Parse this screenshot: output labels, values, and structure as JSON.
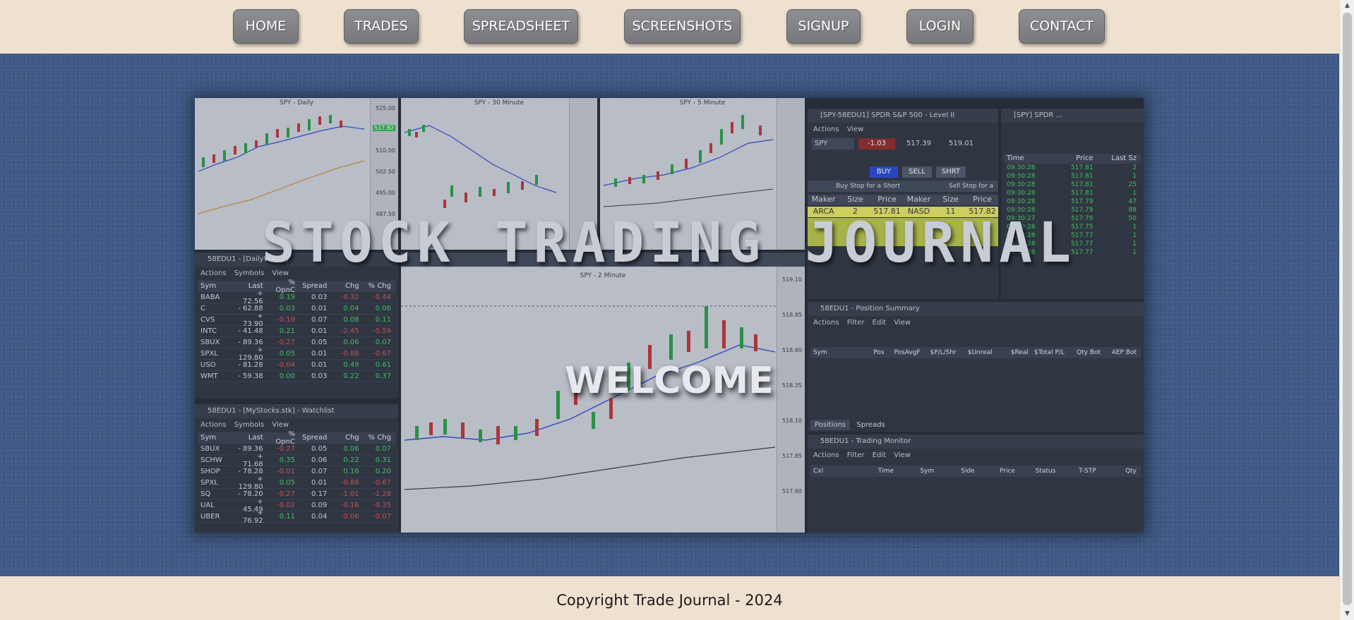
{
  "nav": {
    "home": "HOME",
    "trades": "TRADES",
    "spreadsheet": "SPREADSHEET",
    "screenshots": "SCREENSHOTS",
    "signup": "SIGNUP",
    "login": "LOGIN",
    "contact": "CONTACT"
  },
  "hero": {
    "title": "STOCK TRADING JOURNAL",
    "welcome": "WELCOME"
  },
  "screenshot": {
    "charts": {
      "daily": "SPY - Daily",
      "thirty": "SPY - 30 Minute",
      "five": "SPY - 5 Minute",
      "two": "SPY - 2 Minute",
      "daily_ticks": [
        "525.00",
        "517.82",
        "510.00",
        "502.50",
        "495.00",
        "487.50"
      ],
      "two_ticks": [
        "519.10",
        "518.85",
        "518.60",
        "518.35",
        "518.10",
        "517.85",
        "517.60"
      ]
    },
    "level2": {
      "title": "[SPY-58EDU1] SPDR S&P 500 - Level II",
      "menu": "Actions View",
      "symbol": "SPY",
      "change": "-1.03",
      "bid": "517.39",
      "ask": "519.01",
      "buy": "BUY",
      "sell": "SELL",
      "short": "SHRT",
      "buy_stop": "Buy Stop for a Short",
      "sell_stop": "Sell Stop for a L",
      "headers": [
        "Maker",
        "Size",
        "Price",
        "Maker",
        "Size",
        "Price"
      ],
      "row": [
        "ARCA",
        "2",
        "517.81",
        "NASD",
        "11",
        "517.82"
      ]
    },
    "timesales": {
      "title": "[SPY] SPDR ...",
      "headers": [
        "Time",
        "Price",
        "Last Sz"
      ],
      "rows": [
        [
          "09:30:28",
          "517.81",
          "2"
        ],
        [
          "09:30:28",
          "517.81",
          "1"
        ],
        [
          "09:30:28",
          "517.81",
          "25"
        ],
        [
          "09:30:28",
          "517.81",
          "1"
        ],
        [
          "09:30:28",
          "517.79",
          "47"
        ],
        [
          "09:30:28",
          "517.79",
          "88"
        ],
        [
          "09:30:27",
          "517.78",
          "50"
        ],
        [
          "09:30:28",
          "517.75",
          "1"
        ],
        [
          "09:30:28",
          "517.77",
          "1"
        ],
        [
          "09:30:28",
          "517.77",
          "1"
        ],
        [
          "09:30:28",
          "517.77",
          "1"
        ]
      ]
    },
    "position": {
      "title": "58EDU1 - Position Summary",
      "menu": "Actions Filter Edit View",
      "headers": [
        "Sym",
        "Pos",
        "PosAvgF",
        "$P/L/Shr",
        "$Unreal",
        "$Real",
        "$Total P/L",
        "Qty Bot",
        "AEP Bot"
      ],
      "tabs": [
        "Positions",
        "Spreads"
      ]
    },
    "monitor": {
      "title": "58EDU1 - Trading Monitor",
      "menu": "Actions Filter Edit View",
      "headers": [
        "Cxl",
        "Time",
        "Sym",
        "Side",
        "Price",
        "Status",
        "T-STP",
        "Qty"
      ]
    },
    "watch1": {
      "title": "58EDU1 - [DailyWatch]",
      "menu": "Actions Symbols View",
      "headers": [
        "Sym",
        "Last",
        "% OpnC",
        "Spread",
        "Chg",
        "% Chg"
      ],
      "rows": [
        [
          "BABA",
          "+ 72.56",
          "0.19",
          "0.03",
          "-0.32",
          "-0.44"
        ],
        [
          "C",
          "- 62.88",
          "0.03",
          "0.01",
          "0.04",
          "0.06"
        ],
        [
          "CVS",
          "+ 73.90",
          "-0.19",
          "0.07",
          "0.08",
          "0.11"
        ],
        [
          "INTC",
          "- 41.48",
          "0.21",
          "0.01",
          "-2.45",
          "-5.59"
        ],
        [
          "SBUX",
          "- 89.36",
          "-0.27",
          "0.05",
          "0.06",
          "0.07"
        ],
        [
          "SPXL",
          "+ 129.80",
          "0.05",
          "0.01",
          "-0.88",
          "-0.67"
        ],
        [
          "USO",
          "- 81.28",
          "-0.04",
          "0.01",
          "0.49",
          "0.61"
        ],
        [
          "WMT",
          "- 59.38",
          "0.00",
          "0.03",
          "0.22",
          "0.37"
        ]
      ]
    },
    "watch2": {
      "title": "58EDU1 - [MyStocks.stk] - Watchlist",
      "menu": "Actions Symbols View",
      "headers": [
        "Sym",
        "Last",
        "% OpnC",
        "Spread",
        "Chg",
        "% Chg"
      ],
      "rows": [
        [
          "SBUX",
          "- 89.36",
          "-0.27",
          "0.05",
          "0.06",
          "0.07"
        ],
        [
          "SCHW",
          "+ 71.68",
          "0.35",
          "0.06",
          "0.22",
          "0.31"
        ],
        [
          "SHOP",
          "- 78.28",
          "-0.01",
          "0.07",
          "0.16",
          "0.20"
        ],
        [
          "SPXL",
          "+ 129.80",
          "0.05",
          "0.01",
          "-0.88",
          "-0.67"
        ],
        [
          "SQ",
          "- 78.20",
          "-0.27",
          "0.17",
          "-1.01",
          "-1.28"
        ],
        [
          "UAL",
          "+ 45.49",
          "-0.02",
          "0.09",
          "-0.16",
          "-0.35"
        ],
        [
          "UBER",
          "+ 76.92",
          "0.11",
          "0.04",
          "-0.06",
          "-0.07"
        ]
      ]
    }
  },
  "footer": {
    "copyright": "Copyright Trade Journal - 2024"
  },
  "colors": {
    "page_bg": "#efe1cf",
    "hero_bg": "#3f5a86",
    "nav_button": "#808185",
    "positive": "#3fd15a",
    "negative": "#e04a4a"
  }
}
